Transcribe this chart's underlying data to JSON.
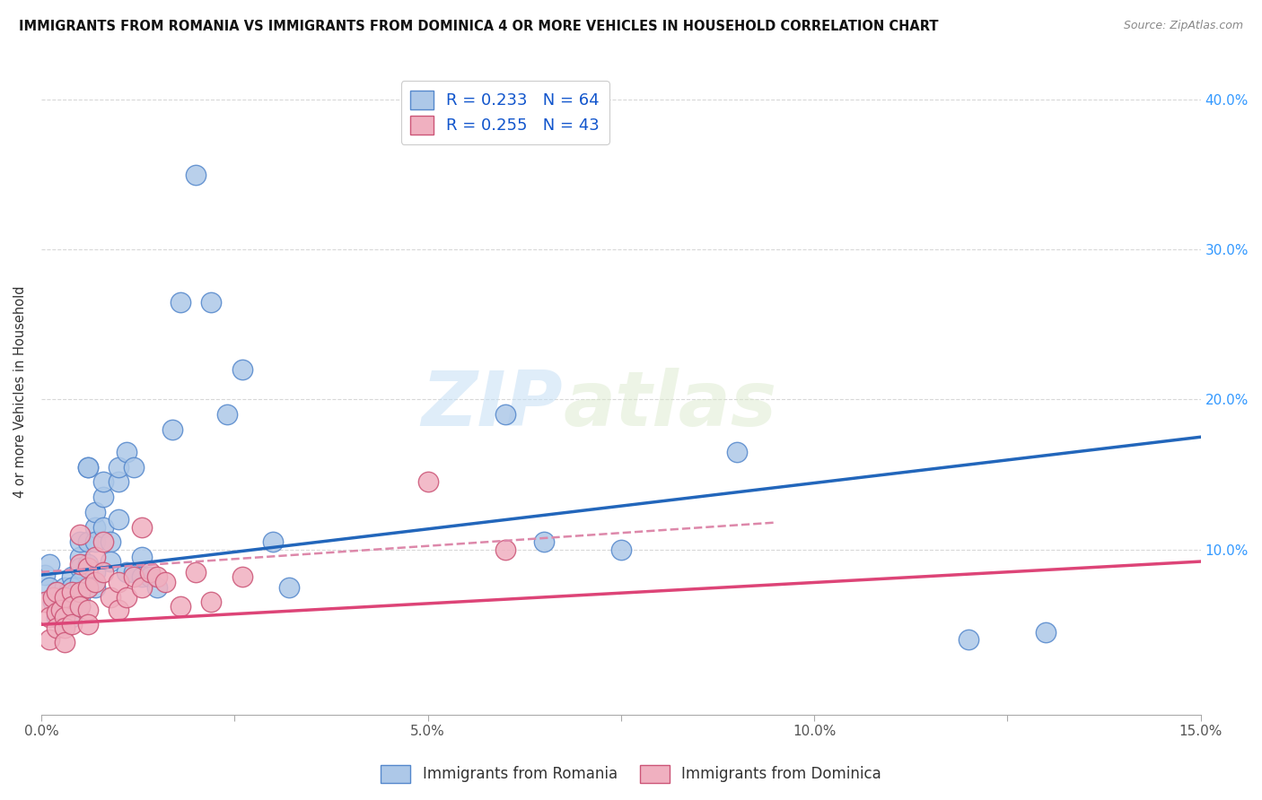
{
  "title": "IMMIGRANTS FROM ROMANIA VS IMMIGRANTS FROM DOMINICA 4 OR MORE VEHICLES IN HOUSEHOLD CORRELATION CHART",
  "source": "Source: ZipAtlas.com",
  "ylabel": "4 or more Vehicles in Household",
  "xlim": [
    0.0,
    0.15
  ],
  "ylim": [
    -0.01,
    0.42
  ],
  "xticks": [
    0.0,
    0.025,
    0.05,
    0.075,
    0.1,
    0.125,
    0.15
  ],
  "xticklabels": [
    "0.0%",
    "",
    "5.0%",
    "",
    "10.0%",
    "",
    "15.0%"
  ],
  "yticks_right": [
    0.1,
    0.2,
    0.3,
    0.4
  ],
  "yticklabels_right": [
    "10.0%",
    "20.0%",
    "30.0%",
    "40.0%"
  ],
  "romania_color": "#adc8e8",
  "romania_edge_color": "#5588cc",
  "dominica_color": "#f0b0c0",
  "dominica_edge_color": "#cc5577",
  "trend_romania_color": "#2266bb",
  "trend_dominica_color": "#dd4477",
  "trend_dominica_dash_color": "#dd88aa",
  "R_romania": 0.233,
  "N_romania": 64,
  "R_dominica": 0.255,
  "N_dominica": 43,
  "romania_x": [
    0.0005,
    0.001,
    0.001,
    0.0015,
    0.002,
    0.002,
    0.002,
    0.0025,
    0.003,
    0.003,
    0.003,
    0.003,
    0.0035,
    0.004,
    0.004,
    0.004,
    0.004,
    0.004,
    0.0045,
    0.005,
    0.005,
    0.005,
    0.005,
    0.005,
    0.005,
    0.006,
    0.006,
    0.006,
    0.006,
    0.007,
    0.007,
    0.007,
    0.007,
    0.007,
    0.008,
    0.008,
    0.008,
    0.009,
    0.009,
    0.01,
    0.01,
    0.01,
    0.011,
    0.011,
    0.012,
    0.012,
    0.013,
    0.013,
    0.014,
    0.015,
    0.017,
    0.018,
    0.02,
    0.022,
    0.024,
    0.026,
    0.03,
    0.032,
    0.06,
    0.065,
    0.075,
    0.09,
    0.12,
    0.13
  ],
  "romania_y": [
    0.083,
    0.075,
    0.09,
    0.065,
    0.072,
    0.068,
    0.055,
    0.068,
    0.075,
    0.062,
    0.058,
    0.05,
    0.072,
    0.082,
    0.075,
    0.068,
    0.062,
    0.055,
    0.072,
    0.095,
    0.105,
    0.088,
    0.078,
    0.068,
    0.062,
    0.155,
    0.155,
    0.105,
    0.09,
    0.115,
    0.125,
    0.105,
    0.085,
    0.075,
    0.135,
    0.145,
    0.115,
    0.105,
    0.092,
    0.145,
    0.155,
    0.12,
    0.165,
    0.085,
    0.155,
    0.085,
    0.095,
    0.082,
    0.082,
    0.075,
    0.18,
    0.265,
    0.35,
    0.265,
    0.19,
    0.22,
    0.105,
    0.075,
    0.19,
    0.105,
    0.1,
    0.165,
    0.04,
    0.045
  ],
  "dominica_x": [
    0.0005,
    0.001,
    0.001,
    0.0015,
    0.002,
    0.002,
    0.002,
    0.0025,
    0.003,
    0.003,
    0.003,
    0.003,
    0.004,
    0.004,
    0.004,
    0.005,
    0.005,
    0.005,
    0.005,
    0.006,
    0.006,
    0.006,
    0.006,
    0.007,
    0.007,
    0.008,
    0.008,
    0.009,
    0.01,
    0.01,
    0.011,
    0.012,
    0.013,
    0.013,
    0.014,
    0.015,
    0.016,
    0.018,
    0.02,
    0.022,
    0.026,
    0.05,
    0.06
  ],
  "dominica_y": [
    0.065,
    0.055,
    0.04,
    0.068,
    0.072,
    0.058,
    0.048,
    0.06,
    0.068,
    0.055,
    0.048,
    0.038,
    0.072,
    0.062,
    0.05,
    0.11,
    0.09,
    0.072,
    0.062,
    0.088,
    0.075,
    0.06,
    0.05,
    0.095,
    0.078,
    0.105,
    0.085,
    0.068,
    0.078,
    0.06,
    0.068,
    0.082,
    0.115,
    0.075,
    0.085,
    0.082,
    0.078,
    0.062,
    0.085,
    0.065,
    0.082,
    0.145,
    0.1
  ],
  "trend_romania_x0": 0.0,
  "trend_romania_y0": 0.083,
  "trend_romania_x1": 0.15,
  "trend_romania_y1": 0.175,
  "trend_dominica_x0": 0.0,
  "trend_dominica_y0": 0.05,
  "trend_dominica_x1": 0.15,
  "trend_dominica_y1": 0.092,
  "trend_dominica_dash_x1": 0.095,
  "trend_dominica_dash_y0": 0.085,
  "trend_dominica_dash_y1": 0.118,
  "watermark_zip": "ZIP",
  "watermark_atlas": "atlas",
  "legend_romania": "Immigrants from Romania",
  "legend_dominica": "Immigrants from Dominica",
  "background_color": "#ffffff",
  "grid_color": "#d8d8d8"
}
